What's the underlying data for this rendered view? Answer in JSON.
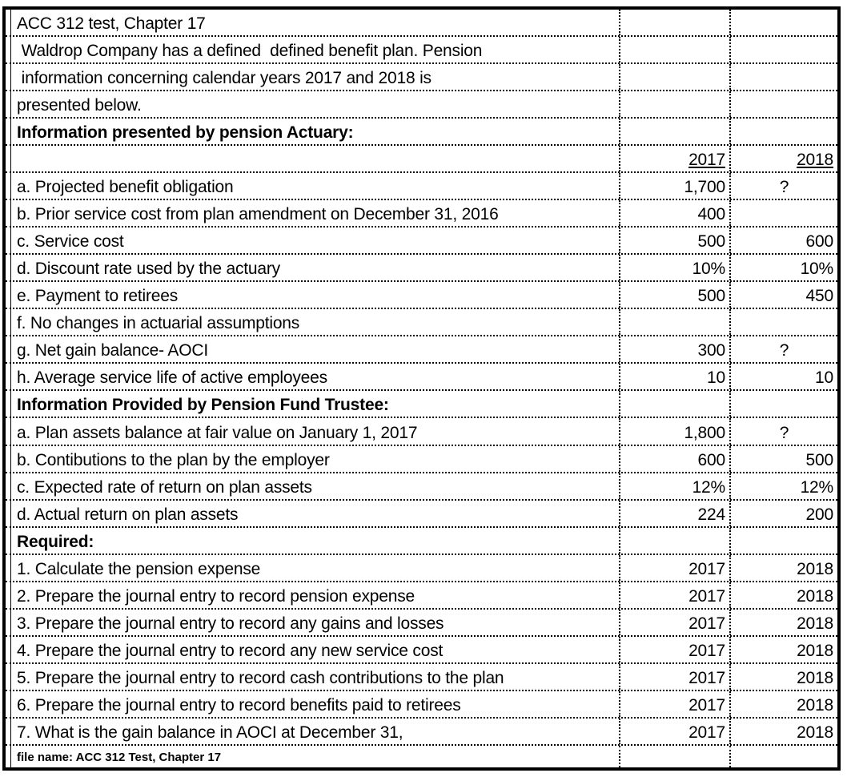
{
  "colors": {
    "ink": "#000000",
    "paper": "#ffffff"
  },
  "sheet_title": "ACC 312 test, Chapter 17",
  "columns": {
    "description": "",
    "col2": "2017",
    "col3": "2018"
  },
  "rows": [
    {
      "label": "ACC 312 test, Chapter 17",
      "c2017": "",
      "c2018": ""
    },
    {
      "label": " Waldrop Company has a defined  defined benefit plan. Pension",
      "c2017": "",
      "c2018": ""
    },
    {
      "label": " information concerning calendar years 2017 and 2018 is",
      "c2017": "",
      "c2018": ""
    },
    {
      "label": "presented below.",
      "c2017": "",
      "c2018": ""
    },
    {
      "label": "Information presented by pension Actuary:",
      "c2017": "",
      "c2018": "",
      "bold": true
    },
    {
      "label": "",
      "c2017": "2017",
      "c2018": "2018",
      "underline_values": true
    },
    {
      "label": "a. Projected benefit obligation",
      "c2017": "1,700",
      "c2018": "?",
      "center_2018": true
    },
    {
      "label": "b. Prior service cost from plan amendment on December 31, 2016",
      "c2017": "400",
      "c2018": ""
    },
    {
      "label": "c. Service cost",
      "c2017": "500",
      "c2018": "600"
    },
    {
      "label": "d. Discount rate used by the actuary",
      "c2017": "10%",
      "c2018": "10%"
    },
    {
      "label": "e. Payment to retirees",
      "c2017": "500",
      "c2018": "450"
    },
    {
      "label": "f. No changes in actuarial assumptions",
      "c2017": "",
      "c2018": ""
    },
    {
      "label": "g. Net gain balance- AOCI",
      "c2017": "300",
      "c2018": "?",
      "center_2018": true
    },
    {
      "label": "h. Average service life of active employees",
      "c2017": "10",
      "c2018": "10"
    },
    {
      "label": "Information Provided by Pension Fund Trustee:",
      "c2017": "",
      "c2018": "",
      "bold": true
    },
    {
      "label": "a. Plan assets balance at fair value on January 1, 2017",
      "c2017": "1,800",
      "c2018": "?",
      "center_2018": true
    },
    {
      "label": "b. Contibutions to the plan by the employer",
      "c2017": "600",
      "c2018": "500"
    },
    {
      "label": "c. Expected rate of return on plan assets",
      "c2017": "12%",
      "c2018": "12%"
    },
    {
      "label": "d. Actual return on plan assets",
      "c2017": "224",
      "c2018": "200"
    },
    {
      "label": "Required:",
      "c2017": "",
      "c2018": "",
      "bold": true
    },
    {
      "label": "1. Calculate the pension expense",
      "c2017": "2017",
      "c2018": "2018"
    },
    {
      "label": "2. Prepare the journal entry to record pension expense",
      "c2017": "2017",
      "c2018": "2018"
    },
    {
      "label": "3. Prepare the journal entry to record any gains and losses",
      "c2017": "2017",
      "c2018": "2018"
    },
    {
      "label": "4. Prepare the journal entry to record any new service cost",
      "c2017": "2017",
      "c2018": "2018"
    },
    {
      "label": "5. Prepare the journal entry to record cash contributions to the plan",
      "c2017": "2017",
      "c2018": "2018"
    },
    {
      "label": "6. Prepare the journal entry to record benefits paid to retirees",
      "c2017": "2017",
      "c2018": "2018"
    },
    {
      "label": "7. What is the gain balance in AOCI at December 31,",
      "c2017": "2017",
      "c2018": "2018"
    },
    {
      "label": "file name: ACC 312 Test, Chapter 17",
      "c2017": "",
      "c2018": "",
      "small": true
    }
  ]
}
